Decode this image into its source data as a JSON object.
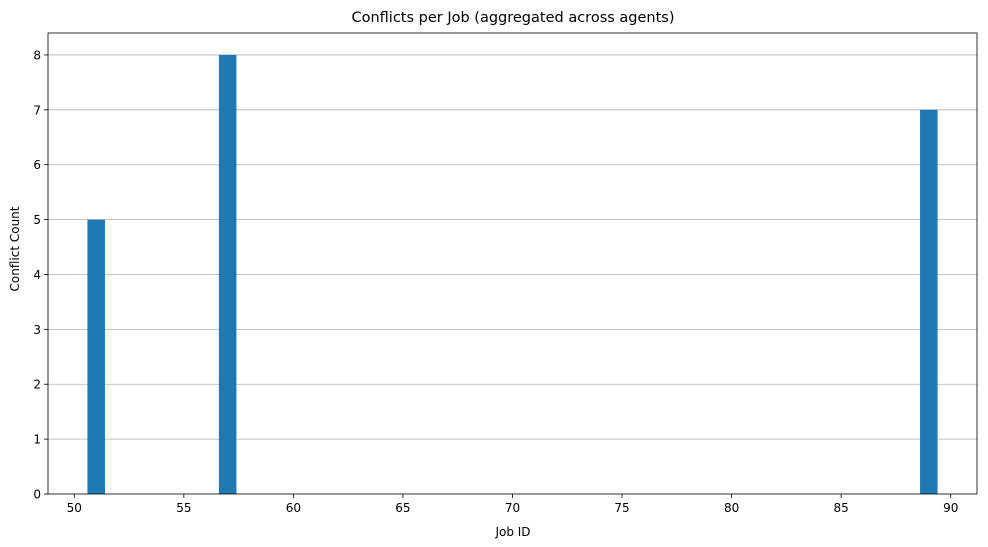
{
  "chart_data": {
    "type": "bar",
    "title": "Conflicts per Job (aggregated across agents)",
    "xlabel": "Job ID",
    "ylabel": "Conflict Count",
    "xlim": [
      48.8,
      91.2
    ],
    "ylim": [
      0,
      8.4
    ],
    "xticks": [
      50,
      55,
      60,
      65,
      70,
      75,
      80,
      85,
      90
    ],
    "yticks": [
      0,
      1,
      2,
      3,
      4,
      5,
      6,
      7,
      8
    ],
    "grid": "y",
    "bar_color": "#1f77b4",
    "bars": [
      {
        "x_start": 50.6,
        "x_end": 51.4,
        "value": 5
      },
      {
        "x_start": 56.6,
        "x_end": 57.4,
        "value": 8
      },
      {
        "x_start": 88.6,
        "x_end": 89.4,
        "value": 7
      }
    ]
  }
}
